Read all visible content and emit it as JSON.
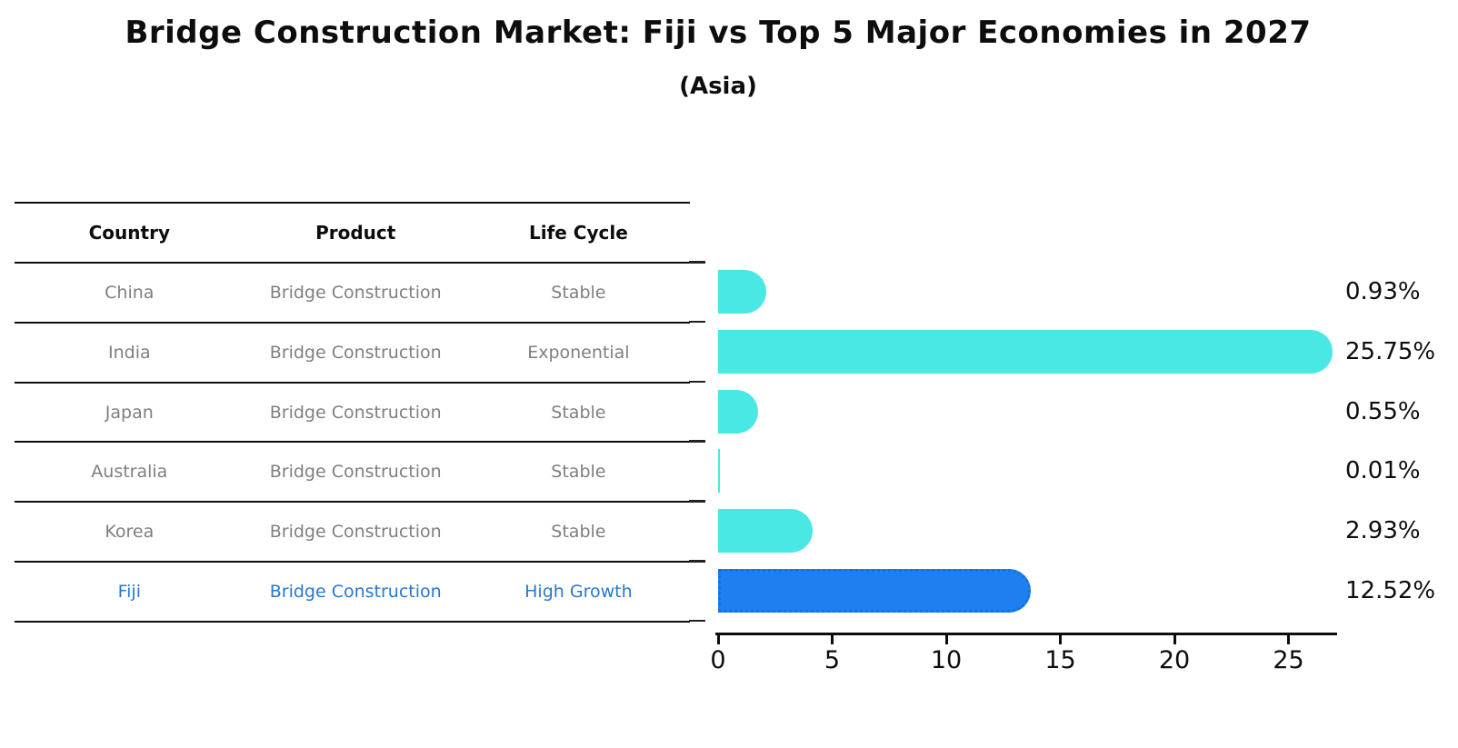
{
  "title": "Bridge Construction Market: Fiji vs Top 5 Major Economies in 2027",
  "subtitle": "(Asia)",
  "table": {
    "headers": {
      "country": "Country",
      "product": "Product",
      "life_cycle": "Life Cycle"
    },
    "rows": [
      {
        "country": "China",
        "product": "Bridge Construction",
        "life_cycle": "Stable",
        "highlight": false
      },
      {
        "country": "India",
        "product": "Bridge Construction",
        "life_cycle": "Exponential",
        "highlight": false
      },
      {
        "country": "Japan",
        "product": "Bridge Construction",
        "life_cycle": "Stable",
        "highlight": false
      },
      {
        "country": "Australia",
        "product": "Bridge Construction",
        "life_cycle": "Stable",
        "highlight": false
      },
      {
        "country": "Korea",
        "product": "Bridge Construction",
        "life_cycle": "Stable",
        "highlight": false
      },
      {
        "country": "Fiji",
        "product": "Bridge Construction",
        "life_cycle": "High Growth",
        "highlight": true
      }
    ]
  },
  "chart_data": {
    "type": "bar",
    "orientation": "horizontal",
    "title": "Bridge Construction Market: Fiji vs Top 5 Major Economies in 2027",
    "subtitle": "(Asia)",
    "categories": [
      "China",
      "India",
      "Japan",
      "Australia",
      "Korea",
      "Fiji"
    ],
    "values": [
      0.93,
      25.75,
      0.55,
      0.01,
      2.93,
      12.52
    ],
    "value_labels": [
      "0.93%",
      "25.75%",
      "0.55%",
      "0.01%",
      "2.93%",
      "12.52%"
    ],
    "x_ticks": [
      0,
      5,
      10,
      15,
      20,
      25
    ],
    "xlim": [
      0,
      27
    ],
    "grid": false,
    "legend": false,
    "highlight_index": 5,
    "bar_color": "#49E8E4",
    "highlight_bar_color": "#1E80F0",
    "highlight_border_color": "#1B6FD8",
    "highlight_text_color": "#2878CE",
    "row_text_color": "#7f7f7f"
  }
}
